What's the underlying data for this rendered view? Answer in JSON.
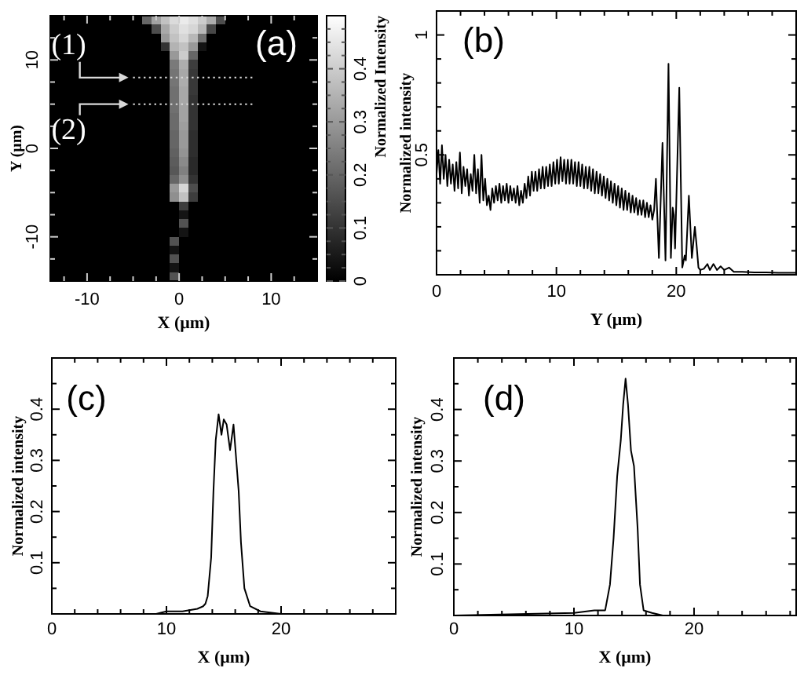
{
  "chart_data": [
    {
      "type": "heatmap",
      "xlabel": "X (μm)",
      "ylabel": "Y (μm)",
      "clabel": "Normalized Intensity",
      "annotations": [
        "(a)",
        {
          "text": "(1)",
          "x": -5.5,
          "y": 8
        },
        {
          "text": "(2)",
          "x": -5.5,
          "y": 5
        }
      ],
      "xlim": [
        -14,
        15
      ],
      "ylim": [
        -15,
        15
      ],
      "xticks": [
        {
          "value": -12.5,
          "label": null
        },
        -10,
        {
          "value": -7.5,
          "label": null
        },
        {
          "value": -5,
          "label": null
        },
        {
          "value": -2.5,
          "label": null
        },
        0,
        {
          "value": 2.5,
          "label": null
        },
        {
          "value": 5,
          "label": null
        },
        {
          "value": 7.5,
          "label": null
        },
        10,
        {
          "value": 12.5,
          "label": null
        }
      ],
      "yticks": [
        {
          "value": -12.5,
          "label": null
        },
        -10,
        {
          "value": -7.5,
          "label": null
        },
        {
          "value": -5,
          "label": null
        },
        {
          "value": -2.5,
          "label": null
        },
        0,
        {
          "value": 2.5,
          "label": null
        },
        {
          "value": 5,
          "label": null
        },
        {
          "value": 7.5,
          "label": null
        },
        10,
        {
          "value": 12.5,
          "label": null
        }
      ],
      "clim": [
        0,
        0.5
      ],
      "cticks": [
        0,
        {
          "value": 0.025,
          "label": null
        },
        {
          "value": 0.05,
          "label": null
        },
        {
          "value": 0.075,
          "label": null
        },
        0.1,
        {
          "value": 0.125,
          "label": null
        },
        {
          "value": 0.15,
          "label": null
        },
        {
          "value": 0.175,
          "label": null
        },
        0.2,
        {
          "value": 0.225,
          "label": null
        },
        {
          "value": 0.25,
          "label": null
        },
        {
          "value": 0.275,
          "label": null
        },
        0.3,
        {
          "value": 0.325,
          "label": null
        },
        {
          "value": 0.35,
          "label": null
        },
        {
          "value": 0.375,
          "label": null
        },
        0.4,
        {
          "value": 0.425,
          "label": null
        },
        {
          "value": 0.45,
          "label": null
        },
        {
          "value": 0.475,
          "label": null
        }
      ],
      "ref_lines": [
        {
          "axis": "y",
          "value": 8,
          "color": "#d9d9d9",
          "line_style": "dotted"
        },
        {
          "axis": "y",
          "value": 5,
          "color": "#d9d9d9",
          "line_style": "dotted"
        }
      ],
      "cells": [
        [
          0,
          0,
          0,
          0,
          0,
          0,
          0,
          0,
          0,
          0,
          0.2,
          0.32,
          0.38,
          0.43,
          0.46,
          0.44,
          0.4,
          0.34,
          0.15,
          0,
          0,
          0,
          0,
          0,
          0,
          0,
          0,
          0,
          0
        ],
        [
          0,
          0,
          0,
          0,
          0,
          0,
          0,
          0,
          0,
          0,
          0,
          0.15,
          0.33,
          0.4,
          0.44,
          0.42,
          0.36,
          0.14,
          0,
          0,
          0,
          0,
          0,
          0,
          0,
          0,
          0,
          0,
          0
        ],
        [
          0,
          0,
          0,
          0,
          0,
          0,
          0,
          0,
          0,
          0,
          0,
          0,
          0.3,
          0.38,
          0.42,
          0.36,
          0.22,
          0,
          0,
          0,
          0,
          0,
          0,
          0,
          0,
          0,
          0,
          0,
          0
        ],
        [
          0,
          0,
          0,
          0,
          0,
          0,
          0,
          0,
          0,
          0,
          0,
          0,
          0.1,
          0.35,
          0.38,
          0.3,
          0.04,
          0,
          0,
          0,
          0,
          0,
          0,
          0,
          0,
          0,
          0,
          0,
          0
        ],
        [
          0,
          0,
          0,
          0,
          0,
          0,
          0,
          0,
          0,
          0,
          0,
          0,
          0,
          0.3,
          0.4,
          0.2,
          0,
          0,
          0,
          0,
          0,
          0,
          0,
          0,
          0,
          0,
          0,
          0,
          0
        ],
        [
          0,
          0,
          0,
          0,
          0,
          0,
          0,
          0,
          0,
          0,
          0,
          0,
          0,
          0.24,
          0.34,
          0.12,
          0,
          0,
          0,
          0,
          0,
          0,
          0,
          0,
          0,
          0,
          0,
          0,
          0
        ],
        [
          0,
          0,
          0,
          0,
          0,
          0,
          0,
          0,
          0,
          0,
          0,
          0,
          0,
          0.23,
          0.33,
          0.11,
          0,
          0,
          0,
          0,
          0,
          0,
          0,
          0,
          0,
          0,
          0,
          0,
          0
        ],
        [
          0,
          0,
          0,
          0,
          0,
          0,
          0,
          0,
          0,
          0,
          0,
          0,
          0,
          0.23,
          0.34,
          0.11,
          0,
          0,
          0,
          0,
          0,
          0,
          0,
          0,
          0,
          0,
          0,
          0,
          0
        ],
        [
          0,
          0,
          0,
          0,
          0,
          0,
          0,
          0,
          0,
          0,
          0,
          0,
          0,
          0.22,
          0.33,
          0.11,
          0,
          0,
          0,
          0,
          0,
          0,
          0,
          0,
          0,
          0,
          0,
          0,
          0
        ],
        [
          0,
          0,
          0,
          0,
          0,
          0,
          0,
          0,
          0,
          0,
          0,
          0,
          0,
          0.22,
          0.33,
          0.1,
          0,
          0,
          0,
          0,
          0,
          0,
          0,
          0,
          0,
          0,
          0,
          0,
          0
        ],
        [
          0,
          0,
          0,
          0,
          0,
          0,
          0,
          0,
          0,
          0,
          0,
          0,
          0,
          0.22,
          0.32,
          0.1,
          0,
          0,
          0,
          0,
          0,
          0,
          0,
          0,
          0,
          0,
          0,
          0,
          0
        ],
        [
          0,
          0,
          0,
          0,
          0,
          0,
          0,
          0,
          0,
          0,
          0,
          0,
          0,
          0.21,
          0.32,
          0.1,
          0,
          0,
          0,
          0,
          0,
          0,
          0,
          0,
          0,
          0,
          0,
          0,
          0
        ],
        [
          0,
          0,
          0,
          0,
          0,
          0,
          0,
          0,
          0,
          0,
          0,
          0,
          0,
          0.21,
          0.31,
          0.1,
          0,
          0,
          0,
          0,
          0,
          0,
          0,
          0,
          0,
          0,
          0,
          0,
          0
        ],
        [
          0,
          0,
          0,
          0,
          0,
          0,
          0,
          0,
          0,
          0,
          0,
          0,
          0,
          0.2,
          0.3,
          0.09,
          0,
          0,
          0,
          0,
          0,
          0,
          0,
          0,
          0,
          0,
          0,
          0,
          0
        ],
        [
          0,
          0,
          0,
          0,
          0,
          0,
          0,
          0,
          0,
          0,
          0,
          0,
          0,
          0.2,
          0.3,
          0.09,
          0,
          0,
          0,
          0,
          0,
          0,
          0,
          0,
          0,
          0,
          0,
          0,
          0
        ],
        [
          0,
          0,
          0,
          0,
          0,
          0,
          0,
          0,
          0,
          0,
          0,
          0,
          0,
          0.19,
          0.29,
          0.09,
          0,
          0,
          0,
          0,
          0,
          0,
          0,
          0,
          0,
          0,
          0,
          0,
          0
        ],
        [
          0,
          0,
          0,
          0,
          0,
          0,
          0,
          0,
          0,
          0,
          0,
          0,
          0,
          0.18,
          0.27,
          0.08,
          0,
          0,
          0,
          0,
          0,
          0,
          0,
          0,
          0,
          0,
          0,
          0,
          0
        ],
        [
          0,
          0,
          0,
          0,
          0,
          0,
          0,
          0,
          0,
          0,
          0,
          0,
          0,
          0.17,
          0.25,
          0.08,
          0,
          0,
          0,
          0,
          0,
          0,
          0,
          0,
          0,
          0,
          0,
          0,
          0
        ],
        [
          0,
          0,
          0,
          0,
          0,
          0,
          0,
          0,
          0,
          0,
          0,
          0,
          0,
          0.2,
          0.28,
          0.1,
          0,
          0,
          0,
          0,
          0,
          0,
          0,
          0,
          0,
          0,
          0,
          0,
          0
        ],
        [
          0,
          0,
          0,
          0,
          0,
          0,
          0,
          0,
          0,
          0,
          0,
          0,
          0,
          0.3,
          0.42,
          0.15,
          0,
          0,
          0,
          0,
          0,
          0,
          0,
          0,
          0,
          0,
          0,
          0,
          0
        ],
        [
          0,
          0,
          0,
          0,
          0,
          0,
          0,
          0,
          0,
          0,
          0,
          0,
          0,
          0.28,
          0.38,
          0.12,
          0,
          0,
          0,
          0,
          0,
          0,
          0,
          0,
          0,
          0,
          0,
          0,
          0
        ],
        [
          0,
          0,
          0,
          0,
          0,
          0,
          0,
          0,
          0,
          0,
          0,
          0,
          0,
          0,
          0.12,
          0,
          0,
          0,
          0,
          0,
          0,
          0,
          0,
          0,
          0,
          0,
          0,
          0,
          0
        ],
        [
          0,
          0,
          0,
          0,
          0,
          0,
          0,
          0,
          0,
          0,
          0,
          0,
          0,
          0,
          0.04,
          0,
          0,
          0,
          0,
          0,
          0,
          0,
          0,
          0,
          0,
          0,
          0,
          0,
          0
        ],
        [
          0,
          0,
          0,
          0,
          0,
          0,
          0,
          0,
          0,
          0,
          0,
          0,
          0,
          0,
          0.16,
          0,
          0,
          0,
          0,
          0,
          0,
          0,
          0,
          0,
          0,
          0,
          0,
          0,
          0
        ],
        [
          0,
          0,
          0,
          0,
          0,
          0,
          0,
          0,
          0,
          0,
          0,
          0,
          0,
          0,
          0.04,
          0,
          0,
          0,
          0,
          0,
          0,
          0,
          0,
          0,
          0,
          0,
          0,
          0,
          0
        ],
        [
          0,
          0,
          0,
          0,
          0,
          0,
          0,
          0,
          0,
          0,
          0,
          0,
          0,
          0.16,
          0,
          0,
          0,
          0,
          0,
          0,
          0,
          0,
          0,
          0,
          0,
          0,
          0,
          0,
          0
        ],
        [
          0,
          0,
          0,
          0,
          0,
          0,
          0,
          0,
          0,
          0,
          0,
          0,
          0,
          0.04,
          0,
          0,
          0,
          0,
          0,
          0,
          0,
          0,
          0,
          0,
          0,
          0,
          0,
          0,
          0
        ],
        [
          0,
          0,
          0,
          0,
          0,
          0,
          0,
          0,
          0,
          0,
          0,
          0,
          0,
          0.16,
          0,
          0,
          0,
          0,
          0,
          0,
          0,
          0,
          0,
          0,
          0,
          0,
          0,
          0,
          0
        ],
        [
          0,
          0,
          0,
          0,
          0,
          0,
          0,
          0,
          0,
          0,
          0,
          0,
          0,
          0.04,
          0,
          0,
          0,
          0,
          0,
          0,
          0,
          0,
          0,
          0,
          0,
          0,
          0,
          0,
          0
        ],
        [
          0,
          0,
          0,
          0,
          0,
          0,
          0,
          0,
          0,
          0,
          0,
          0,
          0,
          0.16,
          0,
          0,
          0,
          0,
          0,
          0,
          0,
          0,
          0,
          0,
          0,
          0,
          0,
          0,
          0
        ]
      ]
    },
    {
      "type": "line",
      "xlabel": "Y (μm)",
      "ylabel": "Normalized intensity",
      "annotations": [
        "(b)"
      ],
      "color": "#000000",
      "xlim": [
        0,
        30
      ],
      "ylim": [
        0,
        1.1
      ],
      "xticks": [
        0,
        {
          "value": 2,
          "label": null
        },
        {
          "value": 4,
          "label": null
        },
        {
          "value": 6,
          "label": null
        },
        {
          "value": 8,
          "label": null
        },
        10,
        {
          "value": 12,
          "label": null
        },
        {
          "value": 14,
          "label": null
        },
        {
          "value": 16,
          "label": null
        },
        {
          "value": 18,
          "label": null
        },
        20,
        {
          "value": 22,
          "label": null
        },
        {
          "value": 24,
          "label": null
        },
        {
          "value": 26,
          "label": null
        },
        {
          "value": 28,
          "label": null
        }
      ],
      "yticks": [
        {
          "value": 0.1,
          "label": null
        },
        {
          "value": 0.2,
          "label": null
        },
        {
          "value": 0.3,
          "label": null
        },
        {
          "value": 0.4,
          "label": null
        },
        0.5,
        {
          "value": 0.6,
          "label": null
        },
        {
          "value": 0.7,
          "label": null
        },
        {
          "value": 0.8,
          "label": null
        },
        {
          "value": 0.9,
          "label": null
        },
        1
      ],
      "x": [
        0,
        0.15,
        0.3,
        0.45,
        0.6,
        0.75,
        0.9,
        1.05,
        1.2,
        1.35,
        1.5,
        1.65,
        1.8,
        1.95,
        2.1,
        2.25,
        2.4,
        2.55,
        2.7,
        2.85,
        3,
        3.15,
        3.3,
        3.45,
        3.6,
        3.75,
        3.9,
        4.05,
        4.2,
        4.35,
        4.5,
        4.65,
        4.8,
        4.95,
        5.1,
        5.25,
        5.4,
        5.55,
        5.7,
        5.85,
        6,
        6.15,
        6.3,
        6.45,
        6.6,
        6.75,
        6.9,
        7.05,
        7.2,
        7.35,
        7.5,
        7.65,
        7.8,
        7.95,
        8.1,
        8.25,
        8.4,
        8.55,
        8.7,
        8.85,
        9,
        9.15,
        9.3,
        9.45,
        9.6,
        9.75,
        9.9,
        10.05,
        10.2,
        10.35,
        10.5,
        10.65,
        10.8,
        10.95,
        11.1,
        11.25,
        11.4,
        11.55,
        11.7,
        11.85,
        12,
        12.15,
        12.3,
        12.45,
        12.6,
        12.75,
        12.9,
        13.05,
        13.2,
        13.35,
        13.5,
        13.65,
        13.8,
        13.95,
        14.1,
        14.25,
        14.4,
        14.55,
        14.7,
        14.85,
        15,
        15.15,
        15.3,
        15.45,
        15.6,
        15.75,
        15.9,
        16.05,
        16.2,
        16.35,
        16.5,
        16.65,
        16.8,
        16.95,
        17.1,
        17.25,
        17.4,
        17.55,
        17.7,
        17.85,
        18,
        18.15,
        18.3,
        18.55,
        18.85,
        19.1,
        19.35,
        19.55,
        19.7,
        19.8,
        19.9,
        20.25,
        20.5,
        20.7,
        20.8,
        21.05,
        21.3,
        21.55,
        21.7,
        21.85,
        22,
        22.3,
        22.6,
        22.8,
        23.1,
        23.4,
        23.7,
        24,
        24.4,
        24.8,
        25.5,
        26.5,
        27.5,
        28.5,
        30
      ],
      "values": [
        0.42,
        0.52,
        0.38,
        0.54,
        0.4,
        0.5,
        0.37,
        0.48,
        0.38,
        0.46,
        0.35,
        0.47,
        0.36,
        0.51,
        0.34,
        0.45,
        0.37,
        0.44,
        0.33,
        0.42,
        0.35,
        0.5,
        0.34,
        0.44,
        0.3,
        0.5,
        0.31,
        0.4,
        0.29,
        0.33,
        0.27,
        0.36,
        0.3,
        0.37,
        0.31,
        0.38,
        0.3,
        0.37,
        0.31,
        0.38,
        0.3,
        0.37,
        0.31,
        0.36,
        0.3,
        0.37,
        0.29,
        0.35,
        0.3,
        0.38,
        0.32,
        0.41,
        0.33,
        0.43,
        0.35,
        0.43,
        0.35,
        0.44,
        0.36,
        0.45,
        0.36,
        0.45,
        0.37,
        0.46,
        0.37,
        0.47,
        0.38,
        0.48,
        0.38,
        0.49,
        0.39,
        0.48,
        0.38,
        0.48,
        0.38,
        0.48,
        0.38,
        0.47,
        0.37,
        0.47,
        0.37,
        0.46,
        0.36,
        0.45,
        0.36,
        0.45,
        0.35,
        0.44,
        0.34,
        0.43,
        0.34,
        0.42,
        0.33,
        0.41,
        0.32,
        0.4,
        0.31,
        0.39,
        0.3,
        0.38,
        0.29,
        0.37,
        0.28,
        0.36,
        0.27,
        0.35,
        0.27,
        0.34,
        0.26,
        0.33,
        0.26,
        0.32,
        0.25,
        0.31,
        0.25,
        0.31,
        0.24,
        0.3,
        0.24,
        0.29,
        0.23,
        0.27,
        0.4,
        0.07,
        0.55,
        0.06,
        0.88,
        0.07,
        0.28,
        0.25,
        0.11,
        0.78,
        0.03,
        0.08,
        0.06,
        0.33,
        0.07,
        0.2,
        0.12,
        0.03,
        0.02,
        0.025,
        0.045,
        0.02,
        0.045,
        0.02,
        0.035,
        0.02,
        0.03,
        0.012,
        0.012,
        0.01,
        0.01,
        0.008,
        0.008
      ]
    },
    {
      "type": "line",
      "xlabel": "X (μm)",
      "ylabel": "Normalized intensity",
      "annotations": [
        "(c)"
      ],
      "color": "#000000",
      "xlim": [
        0,
        30
      ],
      "ylim": [
        0,
        0.5
      ],
      "xticks": [
        0,
        {
          "value": 2,
          "label": null
        },
        {
          "value": 4,
          "label": null
        },
        {
          "value": 6,
          "label": null
        },
        {
          "value": 8,
          "label": null
        },
        10,
        {
          "value": 12,
          "label": null
        },
        {
          "value": 14,
          "label": null
        },
        {
          "value": 16,
          "label": null
        },
        {
          "value": 18,
          "label": null
        },
        20,
        {
          "value": 22,
          "label": null
        },
        {
          "value": 24,
          "label": null
        },
        {
          "value": 26,
          "label": null
        },
        {
          "value": 28,
          "label": null
        }
      ],
      "yticks": [
        {
          "value": 0.05,
          "label": null
        },
        0.1,
        {
          "value": 0.15,
          "label": null
        },
        0.2,
        {
          "value": 0.25,
          "label": null
        },
        0.3,
        {
          "value": 0.35,
          "label": null
        },
        0.4,
        {
          "value": 0.45,
          "label": null
        }
      ],
      "x": [
        0,
        9.1,
        10,
        11.4,
        12.7,
        13.2,
        13.4,
        13.6,
        13.9,
        14.1,
        14.3,
        14.55,
        14.8,
        15,
        15.25,
        15.55,
        15.85,
        16.3,
        16.5,
        16.8,
        17.3,
        18.2,
        20,
        25,
        30
      ],
      "values": [
        0,
        0,
        0.005,
        0.005,
        0.01,
        0.015,
        0.02,
        0.035,
        0.11,
        0.24,
        0.34,
        0.39,
        0.35,
        0.38,
        0.37,
        0.32,
        0.37,
        0.24,
        0.14,
        0.05,
        0.015,
        0.005,
        0,
        0,
        0
      ]
    },
    {
      "type": "line",
      "xlabel": "X (μm)",
      "ylabel": "Normalized intensity",
      "annotations": [
        "(d)"
      ],
      "color": "#000000",
      "xlim": [
        0,
        28.5
      ],
      "ylim": [
        0,
        0.5
      ],
      "xticks": [
        0,
        {
          "value": 2,
          "label": null
        },
        {
          "value": 4,
          "label": null
        },
        {
          "value": 6,
          "label": null
        },
        {
          "value": 8,
          "label": null
        },
        10,
        {
          "value": 12,
          "label": null
        },
        {
          "value": 14,
          "label": null
        },
        {
          "value": 16,
          "label": null
        },
        {
          "value": 18,
          "label": null
        },
        20,
        {
          "value": 22,
          "label": null
        },
        {
          "value": 24,
          "label": null
        },
        {
          "value": 26,
          "label": null
        },
        {
          "value": 28,
          "label": null
        }
      ],
      "yticks": [
        {
          "value": 0.05,
          "label": null
        },
        0.1,
        {
          "value": 0.15,
          "label": null
        },
        0.2,
        {
          "value": 0.25,
          "label": null
        },
        0.3,
        {
          "value": 0.35,
          "label": null
        },
        0.4,
        {
          "value": 0.45,
          "label": null
        }
      ],
      "x": [
        0,
        10,
        11.7,
        12.6,
        13,
        13.3,
        13.6,
        13.9,
        14.1,
        14.3,
        14.5,
        14.75,
        15,
        15.3,
        15.5,
        15.8,
        16.5,
        17.4,
        20,
        28.5
      ],
      "values": [
        0,
        0.005,
        0.01,
        0.01,
        0.06,
        0.15,
        0.27,
        0.34,
        0.41,
        0.46,
        0.41,
        0.32,
        0.29,
        0.17,
        0.06,
        0.01,
        0.005,
        0,
        0,
        0
      ]
    }
  ]
}
